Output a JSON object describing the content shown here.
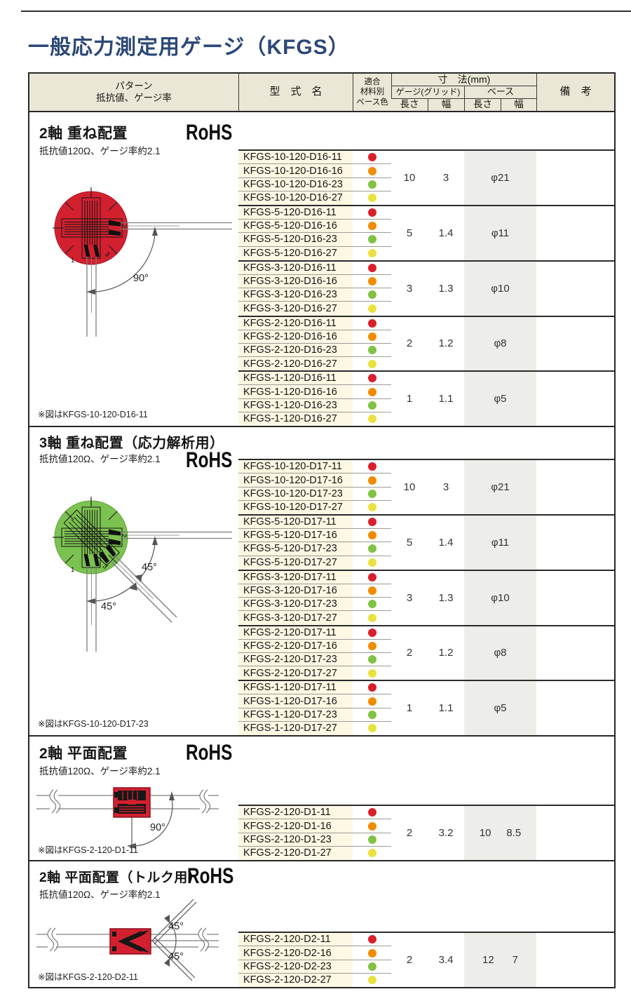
{
  "page_title": "一般応力測定用ゲージ（KFGS）",
  "header": {
    "pattern_line1": "パターン",
    "pattern_line2": "抵抗値、ゲージ率",
    "model_name": "型　式　名",
    "base_color_line1": "適合",
    "base_color_line2": "材料別",
    "base_color_line3": "ベース色",
    "dimensions": "寸　法(mm)",
    "gauge_grid": "ゲージ(グリッド)",
    "base": "ベース",
    "length1": "長さ",
    "width1": "幅",
    "length2": "長さ",
    "width2": "幅",
    "remarks": "備　考"
  },
  "legend_colors": {
    "red": "#da1f2c",
    "orange": "#f18b00",
    "green": "#80c243",
    "yellow": "#e9e23e"
  },
  "colors": {
    "diagram_red": "#d2202f",
    "diagram_green": "#7cc250",
    "title_blue": "#2c4878",
    "header_beige": "#ebe7d7",
    "model_cream": "#fdf8e3",
    "base_gray": "#ededea"
  },
  "sections": [
    {
      "title": "2軸 重ね配置",
      "subtitle": "抵抗値120Ω、ゲージ率約2.1",
      "rohs": "RoHS",
      "note": "※図はKFGS-10-120-D16-11",
      "diagram": {
        "type": "2-axis-stacked-circle",
        "angles": [
          "90°"
        ],
        "axis_numbers": [
          "1",
          "2",
          "3"
        ]
      },
      "groups": [
        {
          "gauge_length": "10",
          "gauge_width": "3",
          "base_merged": "φ21",
          "models": [
            {
              "name": "KFGS-10-120-D16-11",
              "color": "red"
            },
            {
              "name": "KFGS-10-120-D16-16",
              "color": "orange"
            },
            {
              "name": "KFGS-10-120-D16-23",
              "color": "green"
            },
            {
              "name": "KFGS-10-120-D16-27",
              "color": "yellow"
            }
          ]
        },
        {
          "gauge_length": "5",
          "gauge_width": "1.4",
          "base_merged": "φ11",
          "models": [
            {
              "name": "KFGS-5-120-D16-11",
              "color": "red"
            },
            {
              "name": "KFGS-5-120-D16-16",
              "color": "orange"
            },
            {
              "name": "KFGS-5-120-D16-23",
              "color": "green"
            },
            {
              "name": "KFGS-5-120-D16-27",
              "color": "yellow"
            }
          ]
        },
        {
          "gauge_length": "3",
          "gauge_width": "1.3",
          "base_merged": "φ10",
          "models": [
            {
              "name": "KFGS-3-120-D16-11",
              "color": "red"
            },
            {
              "name": "KFGS-3-120-D16-16",
              "color": "orange"
            },
            {
              "name": "KFGS-3-120-D16-23",
              "color": "green"
            },
            {
              "name": "KFGS-3-120-D16-27",
              "color": "yellow"
            }
          ]
        },
        {
          "gauge_length": "2",
          "gauge_width": "1.2",
          "base_merged": "φ8",
          "models": [
            {
              "name": "KFGS-2-120-D16-11",
              "color": "red"
            },
            {
              "name": "KFGS-2-120-D16-16",
              "color": "orange"
            },
            {
              "name": "KFGS-2-120-D16-23",
              "color": "green"
            },
            {
              "name": "KFGS-2-120-D16-27",
              "color": "yellow"
            }
          ]
        },
        {
          "gauge_length": "1",
          "gauge_width": "1.1",
          "base_merged": "φ5",
          "models": [
            {
              "name": "KFGS-1-120-D16-11",
              "color": "red"
            },
            {
              "name": "KFGS-1-120-D16-16",
              "color": "orange"
            },
            {
              "name": "KFGS-1-120-D16-23",
              "color": "green"
            },
            {
              "name": "KFGS-1-120-D16-27",
              "color": "yellow"
            }
          ]
        }
      ]
    },
    {
      "title": "3軸 重ね配置（応力解析用）",
      "subtitle": "抵抗値120Ω、ゲージ率約2.1",
      "rohs": "RoHS",
      "note": "※図はKFGS-10-120-D17-23",
      "diagram": {
        "type": "3-axis-stacked-circle",
        "angles": [
          "45°",
          "45°"
        ],
        "axis_numbers": [
          "1",
          "2",
          "3"
        ]
      },
      "groups": [
        {
          "gauge_length": "10",
          "gauge_width": "3",
          "base_merged": "φ21",
          "models": [
            {
              "name": "KFGS-10-120-D17-11",
              "color": "red"
            },
            {
              "name": "KFGS-10-120-D17-16",
              "color": "orange"
            },
            {
              "name": "KFGS-10-120-D17-23",
              "color": "green"
            },
            {
              "name": "KFGS-10-120-D17-27",
              "color": "yellow"
            }
          ]
        },
        {
          "gauge_length": "5",
          "gauge_width": "1.4",
          "base_merged": "φ11",
          "models": [
            {
              "name": "KFGS-5-120-D17-11",
              "color": "red"
            },
            {
              "name": "KFGS-5-120-D17-16",
              "color": "orange"
            },
            {
              "name": "KFGS-5-120-D17-23",
              "color": "green"
            },
            {
              "name": "KFGS-5-120-D17-27",
              "color": "yellow"
            }
          ]
        },
        {
          "gauge_length": "3",
          "gauge_width": "1.3",
          "base_merged": "φ10",
          "models": [
            {
              "name": "KFGS-3-120-D17-11",
              "color": "red"
            },
            {
              "name": "KFGS-3-120-D17-16",
              "color": "orange"
            },
            {
              "name": "KFGS-3-120-D17-23",
              "color": "green"
            },
            {
              "name": "KFGS-3-120-D17-27",
              "color": "yellow"
            }
          ]
        },
        {
          "gauge_length": "2",
          "gauge_width": "1.2",
          "base_merged": "φ8",
          "models": [
            {
              "name": "KFGS-2-120-D17-11",
              "color": "red"
            },
            {
              "name": "KFGS-2-120-D17-16",
              "color": "orange"
            },
            {
              "name": "KFGS-2-120-D17-23",
              "color": "green"
            },
            {
              "name": "KFGS-2-120-D17-27",
              "color": "yellow"
            }
          ]
        },
        {
          "gauge_length": "1",
          "gauge_width": "1.1",
          "base_merged": "φ5",
          "models": [
            {
              "name": "KFGS-1-120-D17-11",
              "color": "red"
            },
            {
              "name": "KFGS-1-120-D17-16",
              "color": "orange"
            },
            {
              "name": "KFGS-1-120-D17-23",
              "color": "green"
            },
            {
              "name": "KFGS-1-120-D17-27",
              "color": "yellow"
            }
          ]
        }
      ]
    },
    {
      "title": "2軸 平面配置",
      "subtitle": "抵抗値120Ω、ゲージ率約2.1",
      "rohs": "RoHS",
      "note": "※図はKFGS-2-120-D1-11",
      "diagram": {
        "type": "2-axis-planar",
        "angles": [
          "90°"
        ]
      },
      "groups": [
        {
          "gauge_length": "2",
          "gauge_width": "3.2",
          "base_length": "10",
          "base_width": "8.5",
          "models": [
            {
              "name": "KFGS-2-120-D1-11",
              "color": "red"
            },
            {
              "name": "KFGS-2-120-D1-16",
              "color": "orange"
            },
            {
              "name": "KFGS-2-120-D1-23",
              "color": "green"
            },
            {
              "name": "KFGS-2-120-D1-27",
              "color": "yellow"
            }
          ]
        }
      ]
    },
    {
      "title": "2軸 平面配置（トルク用）",
      "subtitle": "抵抗値120Ω、ゲージ率約2.1",
      "rohs": "RoHS",
      "note": "※図はKFGS-2-120-D2-11",
      "diagram": {
        "type": "2-axis-planar-torque",
        "angles": [
          "45°",
          "45°"
        ]
      },
      "groups": [
        {
          "gauge_length": "2",
          "gauge_width": "3.4",
          "base_length": "12",
          "base_width": "7",
          "models": [
            {
              "name": "KFGS-2-120-D2-11",
              "color": "red"
            },
            {
              "name": "KFGS-2-120-D2-16",
              "color": "orange"
            },
            {
              "name": "KFGS-2-120-D2-23",
              "color": "green"
            },
            {
              "name": "KFGS-2-120-D2-27",
              "color": "yellow"
            }
          ]
        }
      ]
    }
  ]
}
